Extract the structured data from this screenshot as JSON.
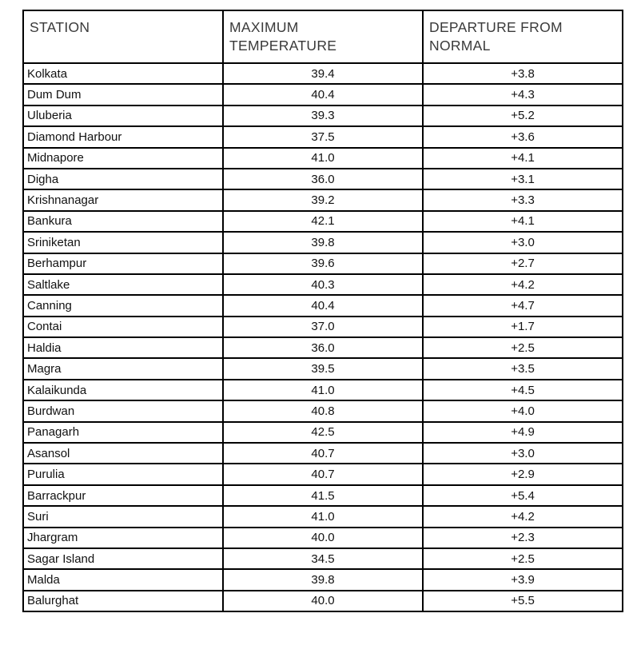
{
  "table": {
    "columns": [
      {
        "key": "station",
        "label": "STATION"
      },
      {
        "key": "max_temp",
        "label": "MAXIMUM\nTEMPERATURE"
      },
      {
        "key": "departure",
        "label": "DEPARTURE FROM\nNORMAL"
      }
    ],
    "rows": [
      {
        "station": "Kolkata",
        "max_temp": "39.4",
        "departure": "+3.8"
      },
      {
        "station": "Dum Dum",
        "max_temp": "40.4",
        "departure": "+4.3"
      },
      {
        "station": "Uluberia",
        "max_temp": "39.3",
        "departure": "+5.2"
      },
      {
        "station": "Diamond Harbour",
        "max_temp": "37.5",
        "departure": "+3.6"
      },
      {
        "station": "Midnapore",
        "max_temp": "41.0",
        "departure": "+4.1"
      },
      {
        "station": "Digha",
        "max_temp": "36.0",
        "departure": "+3.1"
      },
      {
        "station": "Krishnanagar",
        "max_temp": "39.2",
        "departure": "+3.3"
      },
      {
        "station": "Bankura",
        "max_temp": "42.1",
        "departure": "+4.1"
      },
      {
        "station": "Sriniketan",
        "max_temp": "39.8",
        "departure": "+3.0"
      },
      {
        "station": "Berhampur",
        "max_temp": "39.6",
        "departure": "+2.7"
      },
      {
        "station": "Saltlake",
        "max_temp": "40.3",
        "departure": "+4.2"
      },
      {
        "station": "Canning",
        "max_temp": "40.4",
        "departure": "+4.7"
      },
      {
        "station": "Contai",
        "max_temp": "37.0",
        "departure": "+1.7"
      },
      {
        "station": "Haldia",
        "max_temp": "36.0",
        "departure": "+2.5"
      },
      {
        "station": "Magra",
        "max_temp": "39.5",
        "departure": "+3.5"
      },
      {
        "station": "Kalaikunda",
        "max_temp": "41.0",
        "departure": "+4.5"
      },
      {
        "station": "Burdwan",
        "max_temp": "40.8",
        "departure": "+4.0"
      },
      {
        "station": "Panagarh",
        "max_temp": "42.5",
        "departure": "+4.9"
      },
      {
        "station": "Asansol",
        "max_temp": "40.7",
        "departure": "+3.0"
      },
      {
        "station": "Purulia",
        "max_temp": "40.7",
        "departure": "+2.9"
      },
      {
        "station": "Barrackpur",
        "max_temp": "41.5",
        "departure": "+5.4"
      },
      {
        "station": "Suri",
        "max_temp": "41.0",
        "departure": "+4.2"
      },
      {
        "station": "Jhargram",
        "max_temp": "40.0",
        "departure": "+2.3"
      },
      {
        "station": "Sagar Island",
        "max_temp": "34.5",
        "departure": "+2.5"
      },
      {
        "station": "Malda",
        "max_temp": "39.8",
        "departure": "+3.9"
      },
      {
        "station": "Balurghat",
        "max_temp": "40.0",
        "departure": "+5.5"
      }
    ]
  },
  "colors": {
    "border": "#000000",
    "header_text": "#3a3a3a",
    "body_text": "#111111",
    "background": "#ffffff"
  }
}
